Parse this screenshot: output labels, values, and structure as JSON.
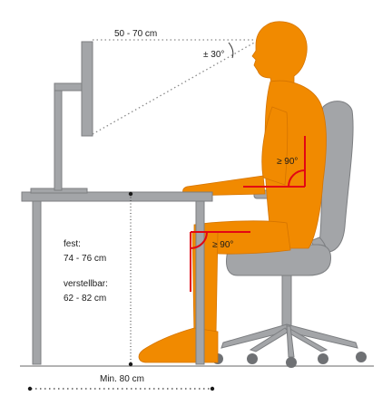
{
  "labels": {
    "eye_distance": "50 - 70 cm",
    "view_angle": "± 30°",
    "elbow_angle": "≥ 90°",
    "knee_angle": "≥ 90°",
    "fixed_label": "fest:",
    "fixed_height": "74 - 76 cm",
    "adjustable_label": "verstellbar:",
    "adjustable_height": "62 - 82 cm",
    "min_legroom": "Min. 80 cm"
  },
  "colors": {
    "person": "#f18a00",
    "furniture": "#a3a5a8",
    "furniture_dark": "#7c7e81",
    "angle_marker": "#e30613",
    "guide": "#333333"
  }
}
